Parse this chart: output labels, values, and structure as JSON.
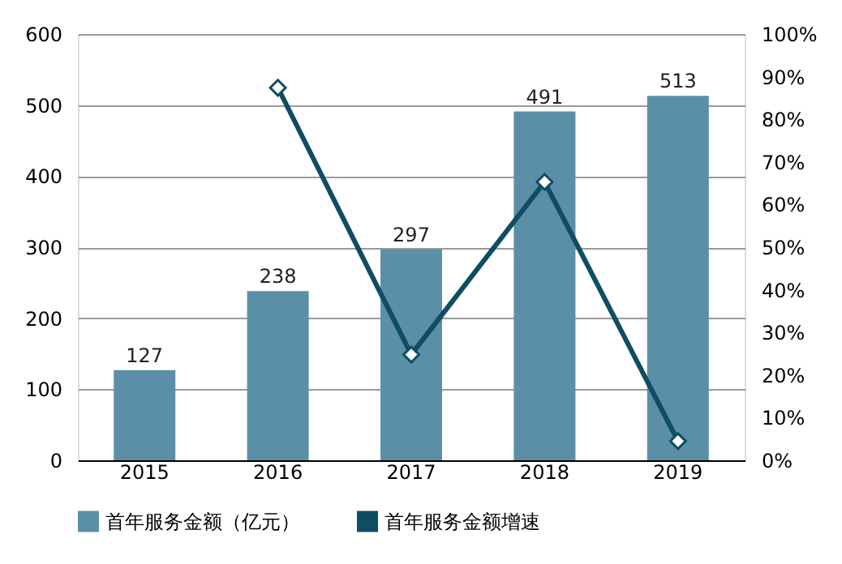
{
  "chart_data": {
    "type": "bar",
    "categories": [
      "2015",
      "2016",
      "2017",
      "2018",
      "2019"
    ],
    "series": [
      {
        "name": "首年服务金额（亿元）",
        "color": "#5b8fa8",
        "values": [
          127,
          238,
          297,
          491,
          513
        ],
        "data_labels": true
      },
      {
        "name": "首年服务金额增速",
        "type": "line",
        "axis": "y2",
        "color": "#0e4d64",
        "marker": "diamond",
        "values": [
          null,
          87.4,
          24.8,
          65.3,
          4.5
        ]
      }
    ],
    "ylim": [
      0,
      600
    ],
    "yticks": [
      0,
      100,
      200,
      300,
      400,
      500,
      600
    ],
    "y2lim": [
      0,
      100
    ],
    "y2ticks": [
      {
        "value": 0,
        "label": "0%"
      },
      {
        "value": 10,
        "label": "10%"
      },
      {
        "value": 20,
        "label": "20%"
      },
      {
        "value": 30,
        "label": "30%"
      },
      {
        "value": 40,
        "label": "40%"
      },
      {
        "value": 50,
        "label": "50%"
      },
      {
        "value": 60,
        "label": "60%"
      },
      {
        "value": 70,
        "label": "70%"
      },
      {
        "value": 80,
        "label": "80%"
      },
      {
        "value": 90,
        "label": "90%"
      },
      {
        "value": 100,
        "label": "100%"
      }
    ],
    "grid": "y",
    "legend": "bottom"
  }
}
